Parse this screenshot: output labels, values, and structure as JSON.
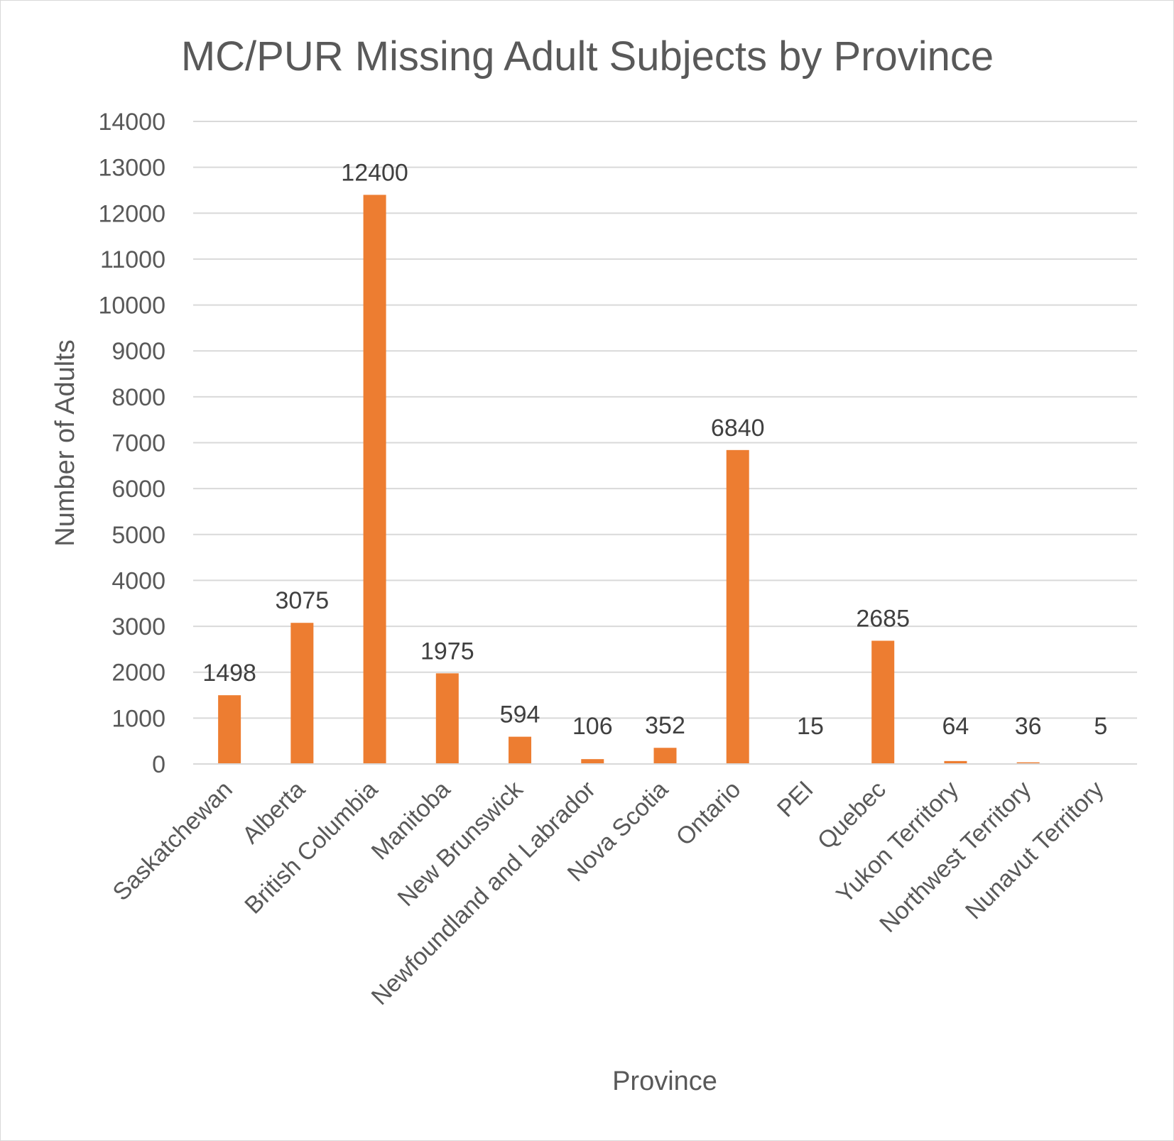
{
  "chart_data": {
    "type": "bar",
    "title": "MC/PUR Missing Adult Subjects by Province",
    "xlabel": "Province",
    "ylabel": "Number of Adults",
    "categories": [
      "Saskatchewan",
      "Alberta",
      "British Columbia",
      "Manitoba",
      "New Brunswick",
      "Newfoundland and Labrador",
      "Nova Scotia",
      "Ontario",
      "PEI",
      "Quebec",
      "Yukon Territory",
      "Northwest Territory",
      "Nunavut Territory"
    ],
    "values": [
      1498,
      3075,
      12400,
      1975,
      594,
      106,
      352,
      6840,
      15,
      2685,
      64,
      36,
      5
    ],
    "data_labels": [
      "1498",
      "3075",
      "12400",
      "1975",
      "594",
      "106",
      "352",
      "6840",
      "15",
      "2685",
      "64",
      "36",
      "5"
    ],
    "ylim": [
      0,
      14000
    ],
    "yticks": [
      0,
      1000,
      2000,
      3000,
      4000,
      5000,
      6000,
      7000,
      8000,
      9000,
      10000,
      11000,
      12000,
      13000,
      14000
    ],
    "grid": true,
    "legend": "none",
    "bar_color": "#ed7d31",
    "grid_color": "#d9d9d9",
    "text_color": "#595959"
  }
}
